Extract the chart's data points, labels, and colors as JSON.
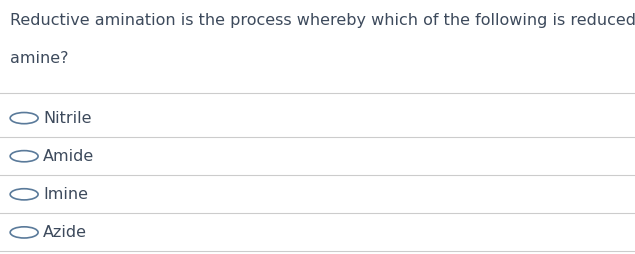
{
  "question_line1": "Reductive amination is the process whereby which of the following is reduced to an",
  "question_line2": "amine?",
  "options": [
    "Nitrile",
    "Amide",
    "Imine",
    "Azide"
  ],
  "background_color": "#ffffff",
  "text_color": "#3d4a5c",
  "line_color": "#cccccc",
  "question_fontsize": 11.5,
  "option_fontsize": 11.5,
  "circle_color": "#5a7a9a",
  "fig_width": 6.35,
  "fig_height": 2.54
}
